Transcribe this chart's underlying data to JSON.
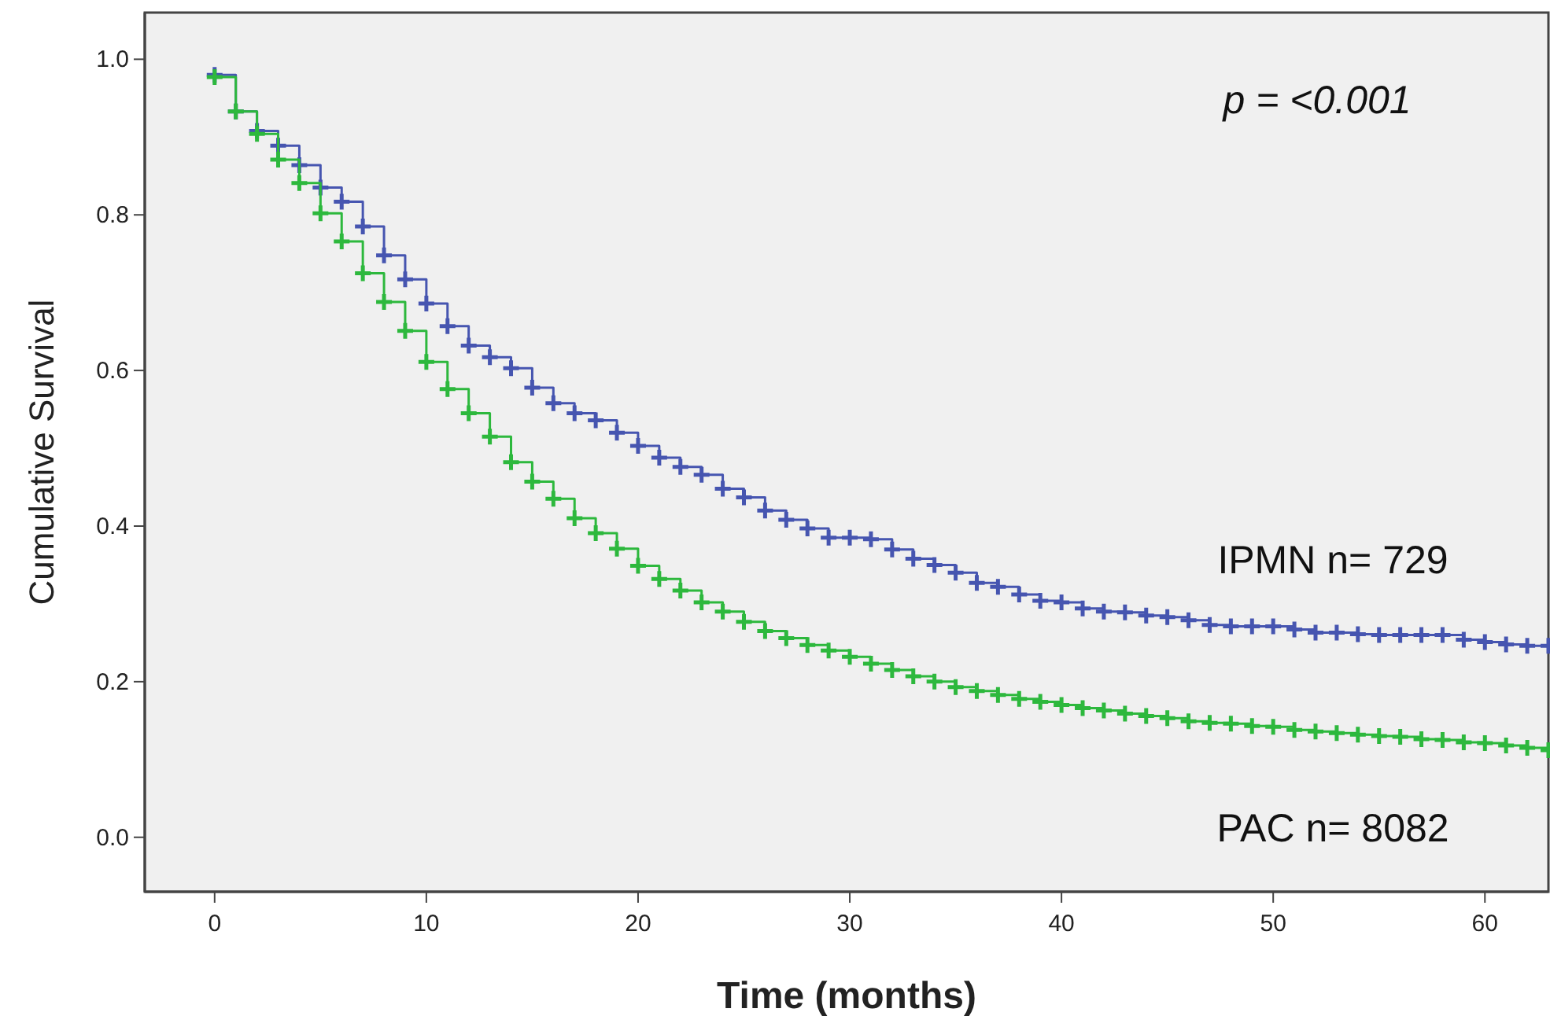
{
  "chart_data": {
    "type": "step",
    "xlabel": "Time (months)",
    "ylabel": "Cumulative Survival",
    "annotations": [
      "p = <0.001"
    ],
    "x": [
      0,
      1,
      2,
      3,
      4,
      5,
      6,
      7,
      8,
      9,
      10,
      11,
      12,
      13,
      14,
      15,
      16,
      17,
      18,
      19,
      20,
      21,
      22,
      23,
      24,
      25,
      26,
      27,
      28,
      29,
      30,
      31,
      32,
      33,
      34,
      35,
      36,
      37,
      38,
      39,
      40,
      41,
      42,
      43,
      44,
      45,
      46,
      47,
      48,
      49,
      50,
      51,
      52,
      53,
      54,
      55,
      56,
      57,
      58,
      59,
      60,
      61,
      62,
      63
    ],
    "series": [
      {
        "name": "IPMN n= 729",
        "color": "#4655b0",
        "values": [
          0.98,
          0.933,
          0.908,
          0.889,
          0.864,
          0.835,
          0.817,
          0.785,
          0.748,
          0.717,
          0.686,
          0.657,
          0.632,
          0.617,
          0.603,
          0.578,
          0.558,
          0.545,
          0.536,
          0.52,
          0.503,
          0.488,
          0.476,
          0.466,
          0.448,
          0.437,
          0.42,
          0.408,
          0.397,
          0.385,
          0.385,
          0.383,
          0.37,
          0.358,
          0.35,
          0.34,
          0.327,
          0.322,
          0.312,
          0.304,
          0.302,
          0.294,
          0.29,
          0.289,
          0.285,
          0.283,
          0.279,
          0.273,
          0.271,
          0.271,
          0.271,
          0.267,
          0.263,
          0.263,
          0.261,
          0.26,
          0.26,
          0.26,
          0.26,
          0.254,
          0.251,
          0.248,
          0.246,
          0.246
        ]
      },
      {
        "name": "PAC n= 8082",
        "color": "#2db83d",
        "values": [
          0.977,
          0.933,
          0.904,
          0.871,
          0.841,
          0.802,
          0.766,
          0.725,
          0.688,
          0.651,
          0.611,
          0.576,
          0.545,
          0.515,
          0.482,
          0.457,
          0.435,
          0.41,
          0.391,
          0.371,
          0.349,
          0.332,
          0.317,
          0.302,
          0.29,
          0.277,
          0.265,
          0.256,
          0.247,
          0.24,
          0.232,
          0.223,
          0.215,
          0.207,
          0.2,
          0.193,
          0.188,
          0.183,
          0.178,
          0.174,
          0.17,
          0.166,
          0.163,
          0.159,
          0.156,
          0.153,
          0.149,
          0.147,
          0.146,
          0.143,
          0.142,
          0.138,
          0.136,
          0.134,
          0.132,
          0.13,
          0.129,
          0.126,
          0.125,
          0.122,
          0.121,
          0.118,
          0.115,
          0.112
        ]
      }
    ],
    "xlim": [
      -3.3,
      63
    ],
    "ylim": [
      -0.07,
      1.06
    ],
    "xticks": [
      0,
      10,
      20,
      30,
      40,
      50,
      60
    ],
    "yticks": [
      {
        "value": 0,
        "label": "0.0"
      },
      {
        "value": 0.2,
        "label": "0.2"
      },
      {
        "value": 0.4,
        "label": "0.4"
      },
      {
        "value": 0.6,
        "label": "0.6"
      },
      {
        "value": 0.8,
        "label": "0.8"
      },
      {
        "value": 1,
        "label": "1.0"
      }
    ],
    "marker": "cross",
    "line_style": "solid"
  }
}
